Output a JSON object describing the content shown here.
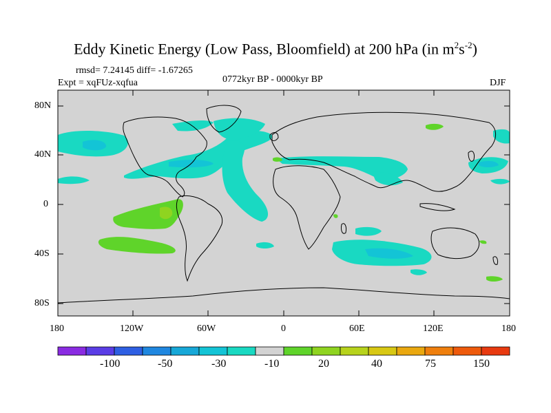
{
  "title": {
    "main": "Eddy Kinetic Energy (Low Pass, Bloomfield) at 200 hPa (in m",
    "sup1": "2",
    "mid": "s",
    "sup2": "-2",
    "close": ")"
  },
  "stats": "rmsd= 7.24145 diff= -1.67265",
  "experiment": "Expt = xqFUz-xqfua",
  "period": "0772kyr BP - 0000kyr BP",
  "season": "DJF",
  "lat_ticks": [
    "80N",
    "40N",
    "0",
    "40S",
    "80S"
  ],
  "lon_ticks": [
    "180",
    "120W",
    "60W",
    "0",
    "60E",
    "120E",
    "180"
  ],
  "colorbar": {
    "colors": [
      "#8a2be2",
      "#5a3de6",
      "#2e5fe3",
      "#1f87e0",
      "#17a8d8",
      "#13c4d6",
      "#19d9c2",
      "#d3d3d3",
      "#5fd42a",
      "#8fd420",
      "#b7d31c",
      "#d8c814",
      "#eaa80f",
      "#ef7f0d",
      "#ee5a0c",
      "#e83a10"
    ],
    "labels": [
      "-100",
      "-50",
      "-30",
      "-10",
      "20",
      "40",
      "75",
      "150"
    ]
  },
  "colors": {
    "land_sea": "#d3d3d3",
    "negative_light": "#19d9c2",
    "negative_mid": "#13c4d6",
    "positive_light": "#5fd42a",
    "positive_mid": "#8fd420",
    "coast": "#000000"
  }
}
